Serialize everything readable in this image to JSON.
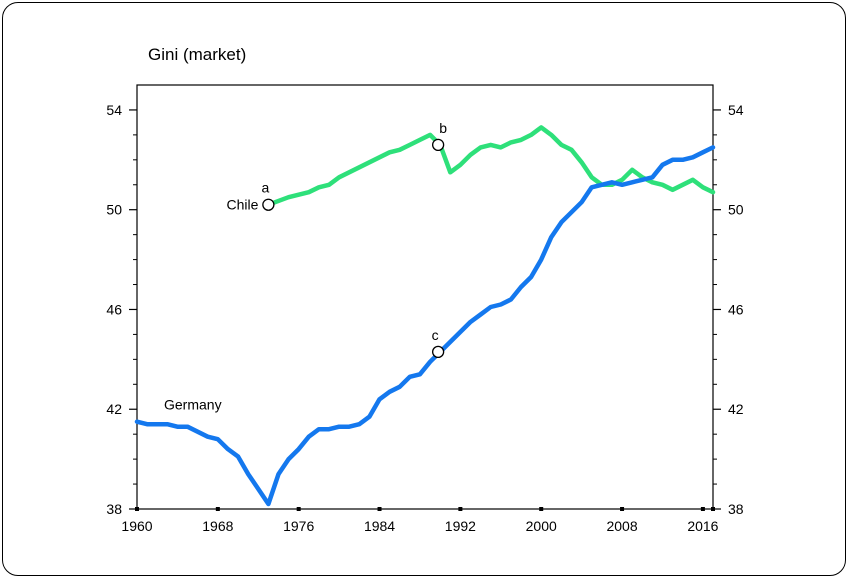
{
  "chart_data": {
    "type": "line",
    "title": "Gini (market)",
    "xlabel": "",
    "ylabel": "",
    "xlim": [
      1960,
      2017
    ],
    "ylim": [
      38,
      55
    ],
    "x_ticks": [
      1960,
      1968,
      1976,
      1984,
      1992,
      2000,
      2008,
      2016
    ],
    "y_ticks": [
      38,
      42,
      46,
      50,
      54
    ],
    "grid": false,
    "colors": {
      "Chile": "#2ee07a",
      "Germany": "#1478ee"
    },
    "series": [
      {
        "name": "Chile",
        "x": [
          1973,
          1975,
          1976,
          1977,
          1978,
          1979,
          1980,
          1981,
          1982,
          1983,
          1984,
          1985,
          1986,
          1987,
          1988,
          1989,
          1990,
          1991,
          1992,
          1993,
          1994,
          1995,
          1996,
          1997,
          1998,
          1999,
          2000,
          2001,
          2002,
          2003,
          2004,
          2005,
          2006,
          2007,
          2008,
          2009,
          2010,
          2011,
          2012,
          2013,
          2014,
          2015,
          2016,
          2017
        ],
        "values": [
          50.2,
          50.5,
          50.6,
          50.7,
          50.9,
          51.0,
          51.3,
          51.5,
          51.7,
          51.9,
          52.1,
          52.3,
          52.4,
          52.6,
          52.8,
          53.0,
          52.6,
          51.5,
          51.8,
          52.2,
          52.5,
          52.6,
          52.5,
          52.7,
          52.8,
          53.0,
          53.3,
          53.0,
          52.6,
          52.4,
          51.9,
          51.3,
          51.0,
          51.0,
          51.2,
          51.6,
          51.3,
          51.1,
          51.0,
          50.8,
          51.0,
          51.2,
          50.9,
          50.7
        ]
      },
      {
        "name": "Germany",
        "x": [
          1960,
          1961,
          1962,
          1963,
          1964,
          1965,
          1966,
          1967,
          1968,
          1969,
          1970,
          1971,
          1972,
          1973,
          1974,
          1975,
          1976,
          1977,
          1978,
          1979,
          1980,
          1981,
          1982,
          1983,
          1984,
          1985,
          1986,
          1987,
          1988,
          1989,
          1990,
          1991,
          1992,
          1993,
          1994,
          1995,
          1996,
          1997,
          1998,
          1999,
          2000,
          2001,
          2002,
          2003,
          2004,
          2005,
          2006,
          2007,
          2008,
          2009,
          2010,
          2011,
          2012,
          2013,
          2014,
          2015,
          2016,
          2017
        ],
        "values": [
          41.5,
          41.4,
          41.4,
          41.4,
          41.3,
          41.3,
          41.1,
          40.9,
          40.8,
          40.4,
          40.1,
          39.4,
          38.8,
          38.2,
          39.4,
          40.0,
          40.4,
          40.9,
          41.2,
          41.2,
          41.3,
          41.3,
          41.4,
          41.7,
          42.4,
          42.7,
          42.9,
          43.3,
          43.4,
          43.9,
          44.3,
          44.7,
          45.1,
          45.5,
          45.8,
          46.1,
          46.2,
          46.4,
          46.9,
          47.3,
          48.0,
          48.9,
          49.5,
          49.9,
          50.3,
          50.9,
          51.0,
          51.1,
          51.0,
          51.1,
          51.2,
          51.3,
          51.8,
          52.0,
          52.0,
          52.1,
          52.3,
          52.5
        ]
      }
    ],
    "annotations": [
      {
        "label": "a",
        "x": 1973,
        "y": 50.2
      },
      {
        "label": "b",
        "x": 1989.8,
        "y": 52.6
      },
      {
        "label": "c",
        "x": 1989.8,
        "y": 44.3
      }
    ],
    "series_labels": [
      {
        "text": "Chile",
        "series": "Chile"
      },
      {
        "text": "Germany",
        "series": "Germany"
      }
    ]
  }
}
